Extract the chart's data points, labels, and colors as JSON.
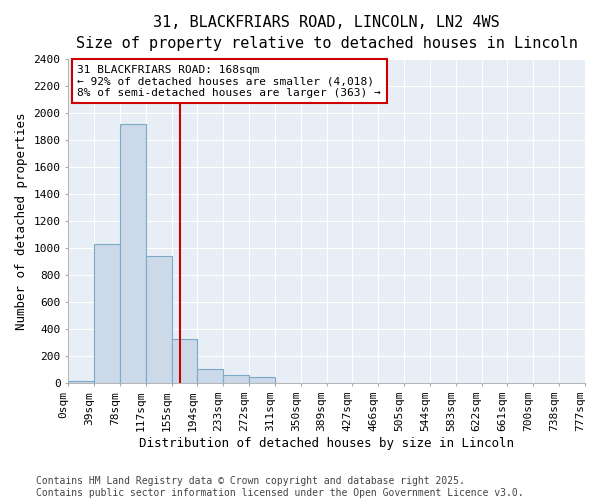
{
  "title_line1": "31, BLACKFRIARS ROAD, LINCOLN, LN2 4WS",
  "title_line2": "Size of property relative to detached houses in Lincoln",
  "xlabel": "Distribution of detached houses by size in Lincoln",
  "ylabel": "Number of detached properties",
  "bar_color": "#ccd9e8",
  "bar_edge_color": "#7aaac8",
  "background_color": "#e8eef5",
  "grid_color": "#ffffff",
  "fig_background": "#ffffff",
  "bins": [
    "0sqm",
    "39sqm",
    "78sqm",
    "117sqm",
    "155sqm",
    "194sqm",
    "233sqm",
    "272sqm",
    "311sqm",
    "350sqm",
    "389sqm",
    "427sqm",
    "466sqm",
    "505sqm",
    "544sqm",
    "583sqm",
    "622sqm",
    "661sqm",
    "700sqm",
    "738sqm",
    "777sqm"
  ],
  "bar_heights": [
    20,
    1030,
    1920,
    940,
    325,
    105,
    60,
    45,
    0,
    0,
    0,
    0,
    0,
    0,
    0,
    0,
    0,
    0,
    0,
    0
  ],
  "ylim": [
    0,
    2400
  ],
  "yticks": [
    0,
    200,
    400,
    600,
    800,
    1000,
    1200,
    1400,
    1600,
    1800,
    2000,
    2200,
    2400
  ],
  "vline_color": "#cc0000",
  "annotation_text": "31 BLACKFRIARS ROAD: 168sqm\n← 92% of detached houses are smaller (4,018)\n8% of semi-detached houses are larger (363) →",
  "annotation_box_color": "#cc0000",
  "footnote": "Contains HM Land Registry data © Crown copyright and database right 2025.\nContains public sector information licensed under the Open Government Licence v3.0.",
  "title_fontsize": 11,
  "subtitle_fontsize": 10,
  "axis_label_fontsize": 9,
  "tick_fontsize": 8,
  "footnote_fontsize": 7
}
